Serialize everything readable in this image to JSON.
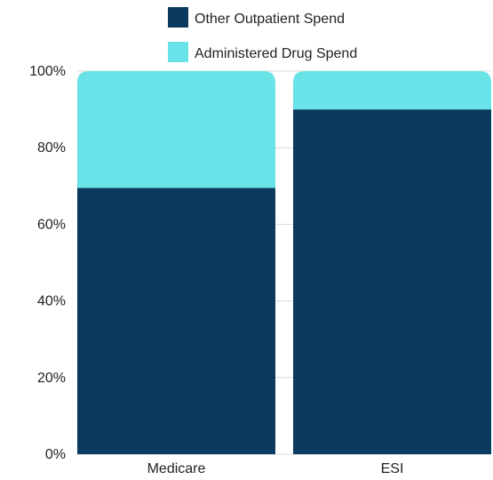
{
  "chart_data": {
    "type": "bar",
    "stacked": true,
    "normalized": true,
    "categories": [
      "Medicare",
      "ESI"
    ],
    "series": [
      {
        "name": "Other Outpatient Spend",
        "values": [
          69.5,
          90
        ],
        "color": "#0b3a5e"
      },
      {
        "name": "Administered Drug Spend",
        "values": [
          30.5,
          10
        ],
        "color": "#6ae3e8"
      }
    ],
    "legend_order": [
      0,
      1
    ],
    "title": "",
    "xlabel": "",
    "ylabel": "",
    "ylim": [
      0,
      100
    ],
    "yticks": [
      0,
      20,
      40,
      60,
      80,
      100
    ],
    "ytick_labels": [
      "0%",
      "20%",
      "40%",
      "60%",
      "80%",
      "100%"
    ],
    "grid": true,
    "legend_position": "top"
  }
}
